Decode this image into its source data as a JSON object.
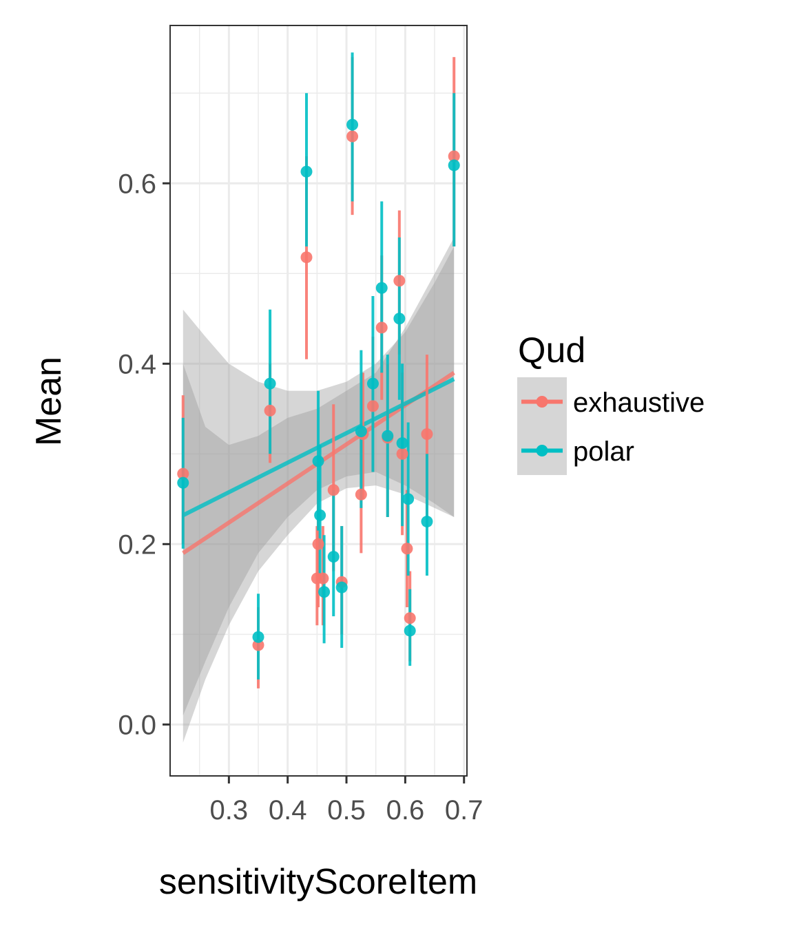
{
  "chart_data": {
    "type": "scatter",
    "xlabel": "sensitivityScoreItem",
    "ylabel": "Mean",
    "xlim": [
      0.2,
      0.705
    ],
    "ylim": [
      -0.057,
      0.775
    ],
    "x_ticks": [
      0.3,
      0.4,
      0.5,
      0.6,
      0.7
    ],
    "x_tick_labels": [
      "0.3",
      "0.4",
      "0.5",
      "0.6",
      "0.7"
    ],
    "y_ticks": [
      0.0,
      0.2,
      0.4,
      0.6
    ],
    "y_tick_labels": [
      "0.0",
      "0.2",
      "0.4",
      "0.6"
    ],
    "grid": true,
    "legend": {
      "title": "Qud",
      "position": "right",
      "entries": [
        "exhaustive",
        "polar"
      ]
    },
    "colors": {
      "exhaustive": "#F8766D",
      "polar": "#00BFC4",
      "band": "#999999",
      "panel_grid": "#ebebeb"
    },
    "series": [
      {
        "name": "exhaustive",
        "points": [
          {
            "x": 0.222,
            "y": 0.278,
            "lo": 0.2,
            "hi": 0.365
          },
          {
            "x": 0.35,
            "y": 0.088,
            "lo": 0.04,
            "hi": 0.13
          },
          {
            "x": 0.37,
            "y": 0.348,
            "lo": 0.29,
            "hi": 0.4
          },
          {
            "x": 0.432,
            "y": 0.518,
            "lo": 0.405,
            "hi": 0.63
          },
          {
            "x": 0.45,
            "y": 0.162,
            "lo": 0.11,
            "hi": 0.22
          },
          {
            "x": 0.452,
            "y": 0.2,
            "lo": 0.13,
            "hi": 0.27
          },
          {
            "x": 0.46,
            "y": 0.162,
            "lo": 0.11,
            "hi": 0.22
          },
          {
            "x": 0.478,
            "y": 0.26,
            "lo": 0.17,
            "hi": 0.355
          },
          {
            "x": 0.492,
            "y": 0.158,
            "lo": 0.1,
            "hi": 0.22
          },
          {
            "x": 0.51,
            "y": 0.652,
            "lo": 0.565,
            "hi": 0.74
          },
          {
            "x": 0.525,
            "y": 0.255,
            "lo": 0.19,
            "hi": 0.32
          },
          {
            "x": 0.528,
            "y": 0.322,
            "lo": 0.25,
            "hi": 0.39
          },
          {
            "x": 0.545,
            "y": 0.353,
            "lo": 0.28,
            "hi": 0.43
          },
          {
            "x": 0.56,
            "y": 0.44,
            "lo": 0.36,
            "hi": 0.52
          },
          {
            "x": 0.57,
            "y": 0.318,
            "lo": 0.23,
            "hi": 0.4
          },
          {
            "x": 0.59,
            "y": 0.492,
            "lo": 0.41,
            "hi": 0.57
          },
          {
            "x": 0.595,
            "y": 0.3,
            "lo": 0.21,
            "hi": 0.39
          },
          {
            "x": 0.603,
            "y": 0.195,
            "lo": 0.13,
            "hi": 0.26
          },
          {
            "x": 0.608,
            "y": 0.118,
            "lo": 0.07,
            "hi": 0.17
          },
          {
            "x": 0.637,
            "y": 0.322,
            "lo": 0.23,
            "hi": 0.41
          },
          {
            "x": 0.683,
            "y": 0.63,
            "lo": 0.53,
            "hi": 0.74
          }
        ],
        "trend": {
          "x": [
            0.222,
            0.683
          ],
          "y": [
            0.19,
            0.39
          ]
        },
        "band": {
          "x": [
            0.222,
            0.26,
            0.3,
            0.35,
            0.4,
            0.45,
            0.5,
            0.55,
            0.6,
            0.65,
            0.683
          ],
          "lo": [
            -0.02,
            0.05,
            0.11,
            0.17,
            0.21,
            0.245,
            0.262,
            0.265,
            0.255,
            0.24,
            0.23
          ],
          "hi": [
            0.4,
            0.33,
            0.31,
            0.32,
            0.34,
            0.35,
            0.37,
            0.39,
            0.44,
            0.5,
            0.54
          ]
        }
      },
      {
        "name": "polar",
        "points": [
          {
            "x": 0.222,
            "y": 0.268,
            "lo": 0.195,
            "hi": 0.34
          },
          {
            "x": 0.35,
            "y": 0.097,
            "lo": 0.05,
            "hi": 0.145
          },
          {
            "x": 0.37,
            "y": 0.378,
            "lo": 0.3,
            "hi": 0.46
          },
          {
            "x": 0.432,
            "y": 0.613,
            "lo": 0.53,
            "hi": 0.7
          },
          {
            "x": 0.452,
            "y": 0.292,
            "lo": 0.215,
            "hi": 0.37
          },
          {
            "x": 0.455,
            "y": 0.232,
            "lo": 0.16,
            "hi": 0.31
          },
          {
            "x": 0.462,
            "y": 0.147,
            "lo": 0.09,
            "hi": 0.21
          },
          {
            "x": 0.478,
            "y": 0.186,
            "lo": 0.12,
            "hi": 0.26
          },
          {
            "x": 0.492,
            "y": 0.152,
            "lo": 0.085,
            "hi": 0.22
          },
          {
            "x": 0.51,
            "y": 0.665,
            "lo": 0.58,
            "hi": 0.745
          },
          {
            "x": 0.525,
            "y": 0.325,
            "lo": 0.24,
            "hi": 0.415
          },
          {
            "x": 0.545,
            "y": 0.378,
            "lo": 0.28,
            "hi": 0.475
          },
          {
            "x": 0.56,
            "y": 0.484,
            "lo": 0.39,
            "hi": 0.58
          },
          {
            "x": 0.57,
            "y": 0.32,
            "lo": 0.23,
            "hi": 0.41
          },
          {
            "x": 0.59,
            "y": 0.45,
            "lo": 0.36,
            "hi": 0.54
          },
          {
            "x": 0.595,
            "y": 0.312,
            "lo": 0.22,
            "hi": 0.4
          },
          {
            "x": 0.605,
            "y": 0.25,
            "lo": 0.165,
            "hi": 0.335
          },
          {
            "x": 0.608,
            "y": 0.104,
            "lo": 0.065,
            "hi": 0.15
          },
          {
            "x": 0.637,
            "y": 0.225,
            "lo": 0.165,
            "hi": 0.3
          },
          {
            "x": 0.683,
            "y": 0.62,
            "lo": 0.53,
            "hi": 0.7
          }
        ],
        "trend": {
          "x": [
            0.222,
            0.683
          ],
          "y": [
            0.232,
            0.383
          ]
        },
        "band": {
          "x": [
            0.222,
            0.26,
            0.3,
            0.35,
            0.4,
            0.45,
            0.5,
            0.55,
            0.6,
            0.65,
            0.683
          ],
          "lo": [
            0.01,
            0.07,
            0.13,
            0.19,
            0.23,
            0.26,
            0.275,
            0.28,
            0.265,
            0.245,
            0.23
          ],
          "hi": [
            0.46,
            0.43,
            0.4,
            0.38,
            0.37,
            0.37,
            0.38,
            0.4,
            0.435,
            0.49,
            0.53
          ]
        }
      }
    ]
  }
}
